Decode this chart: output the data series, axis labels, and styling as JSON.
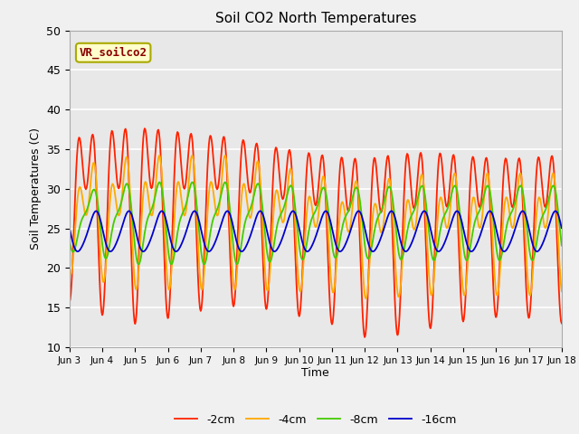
{
  "title": "Soil CO2 North Temperatures",
  "xlabel": "Time",
  "ylabel": "Soil Temperatures (C)",
  "ylim": [
    10,
    50
  ],
  "annotation": "VR_soilco2",
  "legend": [
    "-2cm",
    "-4cm",
    "-8cm",
    "-16cm"
  ],
  "line_colors": [
    "#ff2200",
    "#ffaa00",
    "#44cc00",
    "#0000cc"
  ],
  "xtick_labels": [
    "Jun 3",
    "Jun 4",
    "Jun 5",
    "Jun 6",
    "Jun 7",
    "Jun 8",
    "Jun 9",
    "Jun 10",
    "Jun 11",
    "Jun 12",
    "Jun 13",
    "Jun 14",
    "Jun 15",
    "Jun 16",
    "Jun 17",
    "Jun 18"
  ],
  "background_color": "#e8e8e8",
  "grid_color": "#ffffff",
  "fig_facecolor": "#f0f0f0"
}
